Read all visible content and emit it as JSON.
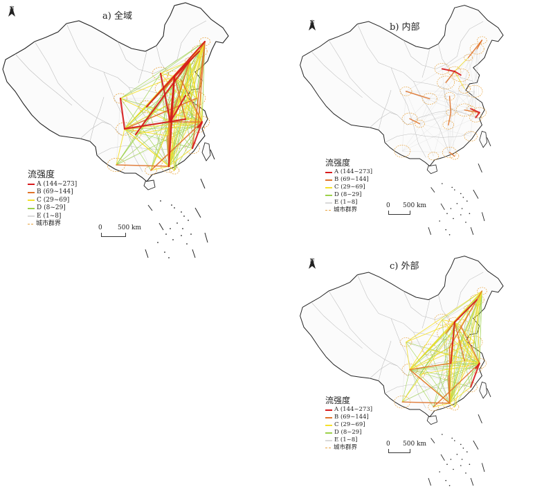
{
  "panels": [
    {
      "id": "a",
      "title": "a) 全域"
    },
    {
      "id": "b",
      "title": "b) 内部"
    },
    {
      "id": "c",
      "title": "c) 外部"
    }
  ],
  "north_label": "N",
  "legend": {
    "title": "流强度",
    "items": [
      {
        "label": "A (144~273]",
        "color": "#d7191c"
      },
      {
        "label": "B (69~144]",
        "color": "#e0732a"
      },
      {
        "label": "C (29~69]",
        "color": "#f5e12a"
      },
      {
        "label": "D (8~29]",
        "color": "#9bd149"
      },
      {
        "label": "E (1~8]",
        "color": "#d9d9d9"
      }
    ],
    "boundary_label": "城市群界",
    "boundary_color": "#e8a23c"
  },
  "scale": {
    "zero": "0",
    "distance": "500 km"
  },
  "colors": {
    "outline": "#222222",
    "province": "#bdbdbd",
    "flow_A": "#d7191c",
    "flow_B": "#e0732a",
    "flow_C": "#f5e12a",
    "flow_D": "#9bd149",
    "flow_E": "#dcdcdc"
  }
}
